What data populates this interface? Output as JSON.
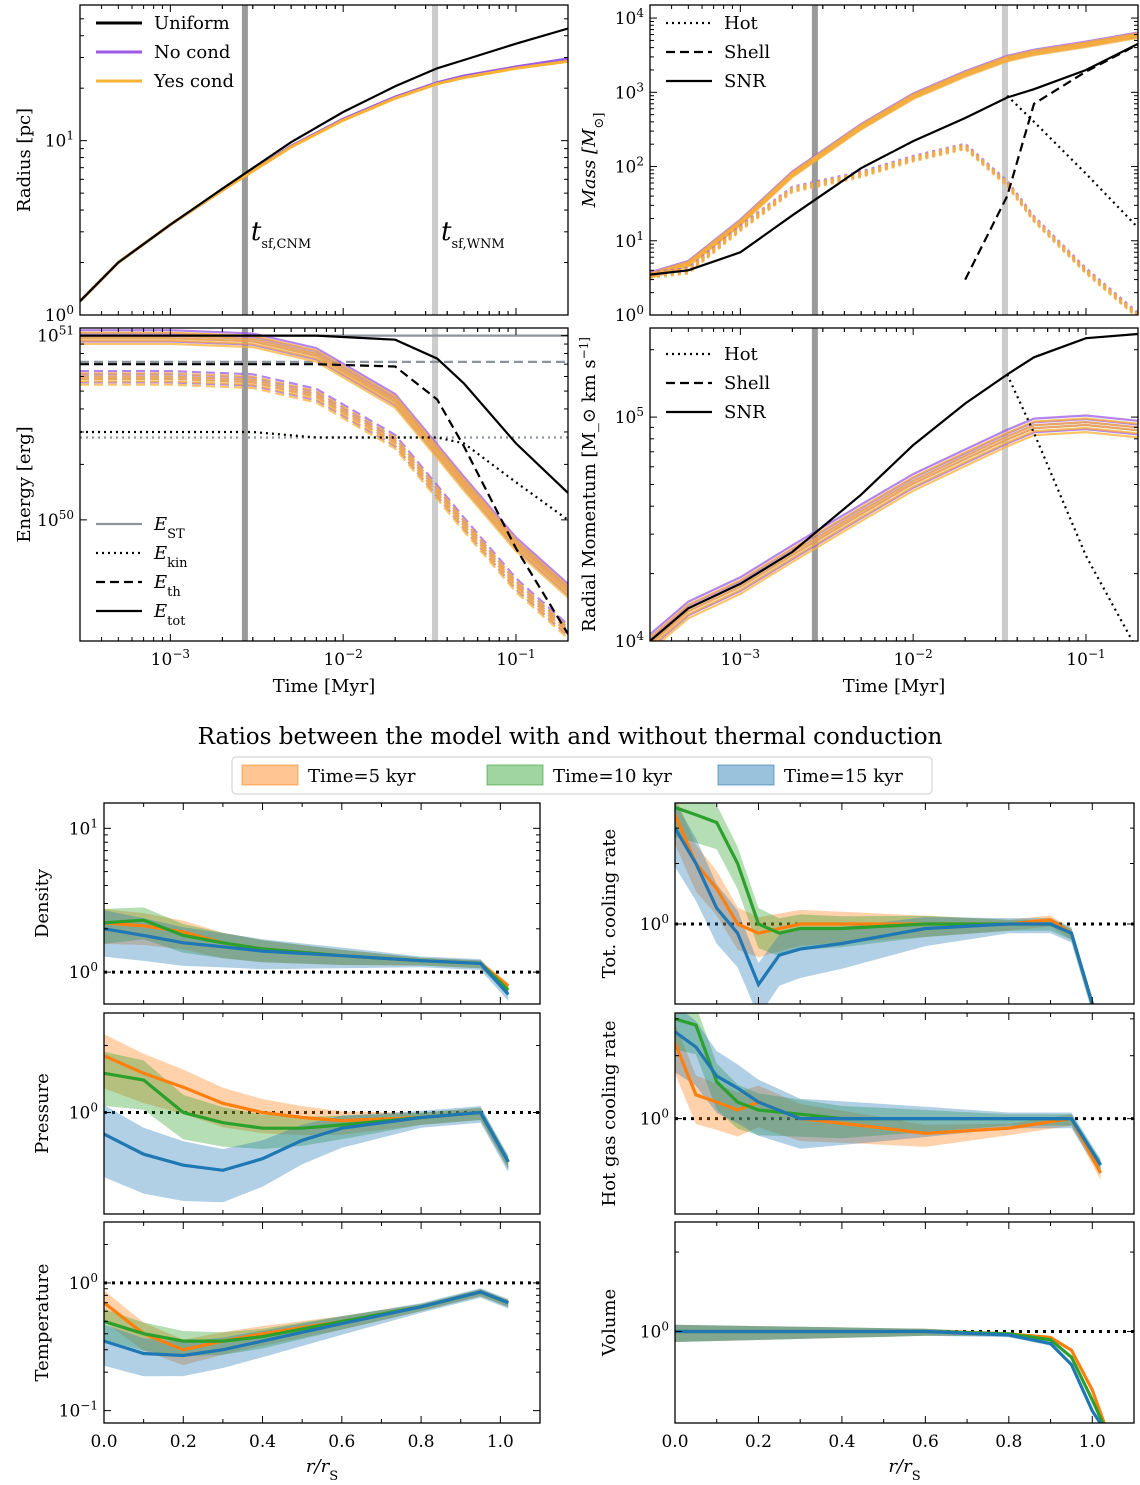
{
  "colors": {
    "uniform": "#000000",
    "no_cond": "#9b59e8",
    "yes_cond": "#f9b234",
    "vline_cnm": "#9a9a9a",
    "vline_wnm": "#cccccc",
    "est": "#8e949c",
    "t5": "#ff7f0e",
    "t10": "#2ca02c",
    "t15": "#1f77b4",
    "ref": "#000000"
  },
  "top_panels": {
    "radius": {
      "ylabel": "Radius [pc]",
      "ytick_labels": [
        "10^0",
        "10^1"
      ]
    },
    "mass": {
      "ylabel": "Mass [M_⊙]",
      "ytick_labels": [
        "10^0",
        "10^1",
        "10^2",
        "10^3",
        "10^4"
      ]
    },
    "energy": {
      "ylabel": "Energy [erg]",
      "ytick_labels": [
        "10^50",
        "10^51"
      ]
    },
    "momentum": {
      "ylabel": "Radial Momentum [M_⊙ km s^-1]",
      "ytick_labels": [
        "10^4",
        "10^5"
      ]
    },
    "xlabel": "Time [Myr]",
    "xtick_labels": [
      "10^-3",
      "10^-2",
      "10^-1"
    ],
    "annotation_cnm": "t_sf,CNM",
    "annotation_wnm": "t_sf,WNM",
    "legend_models": [
      "Uniform",
      "No cond",
      "Yes cond"
    ],
    "legend_components": [
      "Hot",
      "Shell",
      "SNR"
    ],
    "legend_energy": [
      "E_ST",
      "E_kin",
      "E_th",
      "E_tot"
    ]
  },
  "bottom": {
    "title": "Ratios between the model with and without thermal conduction",
    "legend": [
      "Time=5 kyr",
      "Time=10 kyr",
      "Time=15 kyr"
    ],
    "xlabel": "r/r_S",
    "xtick_labels": [
      "0.0",
      "0.2",
      "0.4",
      "0.6",
      "0.8",
      "1.0"
    ],
    "panels": [
      "Density",
      "Pressure",
      "Temperature",
      "Tot. cooling rate",
      "Hot gas cooling rate",
      "Volume"
    ],
    "ytick_labels": {
      "density": [
        "10^0",
        "10^1"
      ],
      "pressure": [
        "10^0"
      ],
      "temperature": [
        "10^-1",
        "10^0"
      ],
      "cooling": [
        "10^0"
      ],
      "hot_cooling": [
        "10^0"
      ],
      "volume": [
        "10^0"
      ]
    }
  },
  "chart_data": [
    {
      "type": "line",
      "title": "Radius",
      "xscale": "log",
      "yscale": "log",
      "xlim": [
        0.0003,
        0.2
      ],
      "ylim": [
        1,
        60
      ],
      "xlabel": "Time [Myr]",
      "ylabel": "Radius [pc]",
      "x": [
        0.0003,
        0.0005,
        0.001,
        0.002,
        0.005,
        0.01,
        0.02,
        0.035,
        0.05,
        0.1,
        0.2
      ],
      "series": [
        {
          "name": "Uniform",
          "values": [
            1.2,
            2.0,
            3.3,
            5.3,
            9.8,
            14.6,
            20.5,
            26.0,
            29.0,
            36.0,
            44.0
          ]
        },
        {
          "name": "No cond",
          "values": [
            1.2,
            2.0,
            3.3,
            5.2,
            9.3,
            13.3,
            17.8,
            21.5,
            23.5,
            26.5,
            29.5
          ]
        },
        {
          "name": "Yes cond",
          "values": [
            1.2,
            2.0,
            3.3,
            5.2,
            9.2,
            13.1,
            17.5,
            21.2,
            23.0,
            26.0,
            28.5
          ]
        }
      ],
      "vlines": {
        "t_sf_CNM": 0.0027,
        "t_sf_WNM": 0.034
      }
    },
    {
      "type": "line",
      "title": "Mass",
      "xscale": "log",
      "yscale": "log",
      "xlim": [
        0.0003,
        0.2
      ],
      "ylim": [
        1,
        15000
      ],
      "xlabel": "Time [Myr]",
      "ylabel": "Mass [M_⊙]",
      "x": [
        0.0003,
        0.0005,
        0.001,
        0.002,
        0.005,
        0.01,
        0.02,
        0.035,
        0.05,
        0.1,
        0.2
      ],
      "series": [
        {
          "name": "Uniform SNR",
          "values": [
            3.5,
            4.0,
            7.0,
            22.0,
            95.0,
            220.0,
            450.0,
            850.0,
            1100.0,
            2000.0,
            4500.0
          ]
        },
        {
          "name": "Uniform Shell",
          "values": [
            null,
            null,
            null,
            null,
            null,
            null,
            3.0,
            40.0,
            700.0,
            1900.0,
            4400.0
          ]
        },
        {
          "name": "Uniform Hot",
          "values": [
            null,
            null,
            null,
            null,
            null,
            null,
            null,
            900.0,
            400.0,
            80.0,
            15.0
          ]
        },
        {
          "name": "Cond SNR",
          "values": [
            3.5,
            5.0,
            18.0,
            80.0,
            350.0,
            900.0,
            1800.0,
            2900.0,
            3500.0,
            4500.0,
            6000.0
          ]
        },
        {
          "name": "Cond Hot",
          "values": [
            3.5,
            4.0,
            15.0,
            50.0,
            80.0,
            130.0,
            190.0,
            60.0,
            20.0,
            4.0,
            1.0
          ]
        }
      ],
      "vlines": {
        "t_sf_CNM": 0.0027,
        "t_sf_WNM": 0.034
      }
    },
    {
      "type": "line",
      "title": "Energy",
      "xscale": "log",
      "yscale": "log",
      "xlim": [
        0.0003,
        0.2
      ],
      "ylim": [
        2.2e+49,
        1.1e+51
      ],
      "xlabel": "Time [Myr]",
      "ylabel": "Energy [erg]",
      "x": [
        0.0003,
        0.001,
        0.003,
        0.007,
        0.02,
        0.035,
        0.05,
        0.1,
        0.2
      ],
      "series": [
        {
          "name": "Uniform E_tot",
          "values": [
            1e+51,
            1e+51,
            1e+51,
            1e+51,
            9.5e+50,
            7.5e+50,
            5.5e+50,
            2.6e+50,
            1.4e+50
          ]
        },
        {
          "name": "Uniform E_th",
          "values": [
            7e+50,
            7e+50,
            7e+50,
            7e+50,
            6.8e+50,
            4.5e+50,
            2.5e+50,
            7e+49,
            2.4e+49
          ]
        },
        {
          "name": "Uniform E_kin",
          "values": [
            3e+50,
            3e+50,
            3e+50,
            2.8e+50,
            2.8e+50,
            2.8e+50,
            2.6e+50,
            1.6e+50,
            1e+50
          ]
        },
        {
          "name": "Cond E_tot",
          "values": [
            1e+51,
            1e+51,
            9.6e+50,
            8e+50,
            4.5e+50,
            2.4e+50,
            1.6e+50,
            7.5e+49,
            4.2e+49
          ]
        }
      ],
      "hlines": {
        "E_ST": 1e+51,
        "E_th_ST": 7.2e+50,
        "E_kin_ST": 2.8e+50
      }
    },
    {
      "type": "line",
      "title": "Radial Momentum",
      "xscale": "log",
      "yscale": "log",
      "xlim": [
        0.0003,
        0.2
      ],
      "ylim": [
        10000,
        250000
      ],
      "xlabel": "Time [Myr]",
      "ylabel": "Radial Momentum [M_⊙ km s^-1]",
      "x": [
        0.0003,
        0.0005,
        0.001,
        0.002,
        0.005,
        0.01,
        0.02,
        0.035,
        0.05,
        0.1,
        0.2
      ],
      "series": [
        {
          "name": "Uniform SNR",
          "values": [
            10000,
            14000,
            18000,
            25000,
            45000,
            75000,
            115000,
            155000,
            185000,
            225000,
            235000
          ]
        },
        {
          "name": "Uniform Hot",
          "values": [
            null,
            null,
            null,
            null,
            null,
            null,
            null,
            155000,
            85000,
            24000,
            9000
          ]
        },
        {
          "name": "Cond SNR",
          "values": [
            10000,
            14000,
            18000,
            25000,
            38000,
            52000,
            67000,
            82000,
            92000,
            95000,
            90000
          ]
        }
      ],
      "vlines": {
        "t_sf_CNM": 0.0027,
        "t_sf_WNM": 0.034
      }
    },
    {
      "type": "line",
      "title": "Density",
      "xlim": [
        0,
        1.1
      ],
      "yscale": "log",
      "ylim": [
        0.6,
        15
      ],
      "xlabel": "r/r_S",
      "ylabel": "Density",
      "x": [
        0.0,
        0.1,
        0.2,
        0.3,
        0.4,
        0.6,
        0.8,
        0.95,
        1.02
      ],
      "series": [
        {
          "name": "Time=5 kyr",
          "values": [
            2.2,
            2.1,
            1.9,
            1.6,
            1.45,
            1.3,
            1.2,
            1.15,
            0.8
          ]
        },
        {
          "name": "Time=10 kyr",
          "values": [
            2.2,
            2.3,
            1.8,
            1.6,
            1.45,
            1.3,
            1.2,
            1.15,
            0.75
          ]
        },
        {
          "name": "Time=15 kyr",
          "values": [
            2.0,
            1.8,
            1.6,
            1.5,
            1.4,
            1.3,
            1.2,
            1.15,
            0.7
          ]
        }
      ]
    },
    {
      "type": "line",
      "title": "Pressure",
      "xlim": [
        0,
        1.1
      ],
      "yscale": "log",
      "ylim": [
        0.35,
        2.8
      ],
      "xlabel": "r/r_S",
      "ylabel": "Pressure",
      "x": [
        0.0,
        0.1,
        0.2,
        0.3,
        0.4,
        0.5,
        0.6,
        0.8,
        0.95,
        1.02
      ],
      "series": [
        {
          "name": "Time=5 kyr",
          "values": [
            1.8,
            1.5,
            1.3,
            1.1,
            1.0,
            0.95,
            0.92,
            0.95,
            1.0,
            0.6
          ]
        },
        {
          "name": "Time=10 kyr",
          "values": [
            1.5,
            1.4,
            1.0,
            0.9,
            0.85,
            0.85,
            0.88,
            0.95,
            1.0,
            0.6
          ]
        },
        {
          "name": "Time=15 kyr",
          "values": [
            0.8,
            0.65,
            0.58,
            0.55,
            0.62,
            0.75,
            0.85,
            0.95,
            1.0,
            0.6
          ]
        }
      ]
    },
    {
      "type": "line",
      "title": "Temperature",
      "xlim": [
        0,
        1.1
      ],
      "yscale": "log",
      "ylim": [
        0.08,
        3
      ],
      "xlabel": "r/r_S",
      "ylabel": "Temperature",
      "x": [
        0.0,
        0.1,
        0.2,
        0.3,
        0.4,
        0.6,
        0.8,
        0.95,
        1.02
      ],
      "series": [
        {
          "name": "Time=5 kyr",
          "values": [
            0.7,
            0.4,
            0.3,
            0.35,
            0.4,
            0.5,
            0.65,
            0.85,
            0.7
          ]
        },
        {
          "name": "Time=10 kyr",
          "values": [
            0.5,
            0.4,
            0.35,
            0.35,
            0.38,
            0.5,
            0.65,
            0.85,
            0.7
          ]
        },
        {
          "name": "Time=15 kyr",
          "values": [
            0.35,
            0.28,
            0.27,
            0.3,
            0.35,
            0.48,
            0.65,
            0.85,
            0.7
          ]
        }
      ]
    },
    {
      "type": "line",
      "title": "Tot. cooling rate",
      "xlim": [
        0,
        1.1
      ],
      "yscale": "log",
      "ylim": [
        0.4,
        4
      ],
      "xlabel": "r/r_S",
      "ylabel": "Tot. cooling rate",
      "x": [
        0.0,
        0.05,
        0.1,
        0.15,
        0.2,
        0.25,
        0.3,
        0.4,
        0.6,
        0.8,
        0.9,
        0.95,
        1.0
      ],
      "series": [
        {
          "name": "Time=5 kyr",
          "values": [
            3.5,
            2.0,
            1.5,
            1.0,
            0.9,
            0.95,
            1.0,
            1.0,
            1.0,
            1.0,
            1.05,
            0.9,
            0.4
          ]
        },
        {
          "name": "Time=10 kyr",
          "values": [
            3.8,
            3.5,
            3.2,
            2.0,
            1.0,
            0.9,
            0.95,
            0.95,
            1.0,
            1.0,
            1.0,
            0.9,
            0.4
          ]
        },
        {
          "name": "Time=15 kyr",
          "values": [
            3.0,
            2.0,
            1.2,
            0.9,
            0.5,
            0.7,
            0.75,
            0.8,
            0.95,
            1.0,
            1.0,
            0.9,
            0.4
          ]
        }
      ]
    },
    {
      "type": "line",
      "title": "Hot gas cooling rate",
      "xlim": [
        0,
        1.1
      ],
      "yscale": "log",
      "ylim": [
        0.35,
        3.2
      ],
      "xlabel": "r/r_S",
      "ylabel": "Hot gas cooling rate",
      "x": [
        0.0,
        0.05,
        0.1,
        0.15,
        0.2,
        0.3,
        0.4,
        0.5,
        0.6,
        0.8,
        0.95,
        1.02
      ],
      "series": [
        {
          "name": "Time=5 kyr",
          "values": [
            2.3,
            1.3,
            1.2,
            1.1,
            1.2,
            1.0,
            0.95,
            0.9,
            0.85,
            0.9,
            1.0,
            0.55
          ]
        },
        {
          "name": "Time=10 kyr",
          "values": [
            3.0,
            2.8,
            1.5,
            1.2,
            1.1,
            1.05,
            1.0,
            1.0,
            1.0,
            1.0,
            1.0,
            0.6
          ]
        },
        {
          "name": "Time=15 kyr",
          "values": [
            2.6,
            2.2,
            1.6,
            1.4,
            1.2,
            1.0,
            1.0,
            1.0,
            1.0,
            1.0,
            1.0,
            0.6
          ]
        }
      ]
    },
    {
      "type": "line",
      "title": "Volume",
      "xlim": [
        0,
        1.1
      ],
      "yscale": "log",
      "ylim": [
        0.45,
        2.6
      ],
      "xlabel": "r/r_S",
      "ylabel": "Volume",
      "x": [
        0.0,
        0.2,
        0.4,
        0.6,
        0.8,
        0.9,
        0.95,
        1.0,
        1.04
      ],
      "series": [
        {
          "name": "Time=5 kyr",
          "values": [
            1.0,
            1.0,
            1.0,
            1.0,
            0.98,
            0.95,
            0.85,
            0.6,
            0.4
          ]
        },
        {
          "name": "Time=10 kyr",
          "values": [
            1.0,
            1.0,
            1.0,
            1.0,
            0.98,
            0.93,
            0.8,
            0.55,
            0.4
          ]
        },
        {
          "name": "Time=15 kyr",
          "values": [
            1.0,
            1.0,
            1.0,
            1.0,
            0.97,
            0.9,
            0.75,
            0.5,
            0.4
          ]
        }
      ]
    }
  ]
}
